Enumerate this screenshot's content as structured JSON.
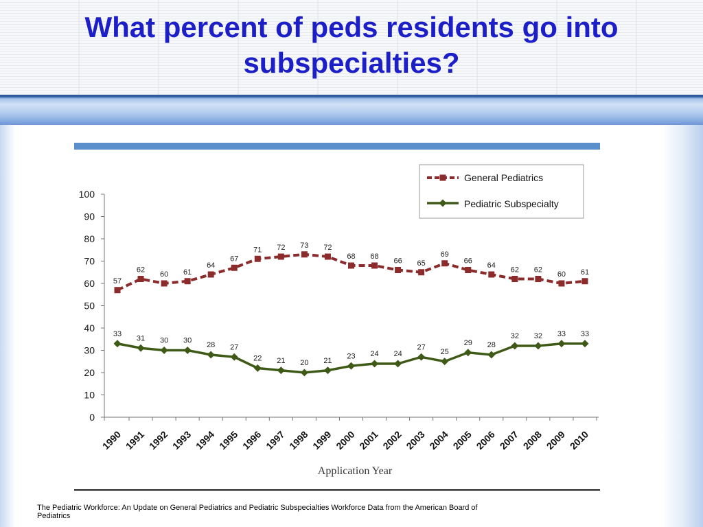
{
  "slide": {
    "title": "What percent of peds residents go into subspecialties?",
    "caption": "The Pediatric Workforce: An Update on General Pediatrics and Pediatric Subspecialties Workforce Data from the American Board of Pediatrics"
  },
  "colors": {
    "title": "#1c1fc7",
    "general": "#8b2b2b",
    "subspecialty": "#3f5a17"
  },
  "chart_data": {
    "type": "line",
    "title": "",
    "xlabel": "Application Year",
    "ylabel": "",
    "ylim": [
      0,
      100
    ],
    "yticks": [
      0,
      10,
      20,
      30,
      40,
      50,
      60,
      70,
      80,
      90,
      100
    ],
    "grid": false,
    "legend_position": "top-right",
    "x": [
      "1990",
      "1991",
      "1992",
      "1993",
      "1994",
      "1995",
      "1996",
      "1997",
      "1998",
      "1999",
      "2000",
      "2001",
      "2002",
      "2003",
      "2004",
      "2005",
      "2006",
      "2007",
      "2008",
      "2009",
      "2010"
    ],
    "series": [
      {
        "name": "General Pediatrics",
        "style": "dashed-square",
        "color": "#8b2b2b",
        "values": [
          57,
          62,
          60,
          61,
          64,
          67,
          71,
          72,
          73,
          72,
          68,
          68,
          66,
          65,
          69,
          66,
          64,
          62,
          62,
          60,
          61
        ]
      },
      {
        "name": "Pediatric Subspecialty",
        "style": "solid-diamond",
        "color": "#3f5a17",
        "values": [
          33,
          31,
          30,
          30,
          28,
          27,
          22,
          21,
          20,
          21,
          23,
          24,
          24,
          27,
          25,
          29,
          28,
          32,
          32,
          33,
          33
        ]
      }
    ]
  }
}
